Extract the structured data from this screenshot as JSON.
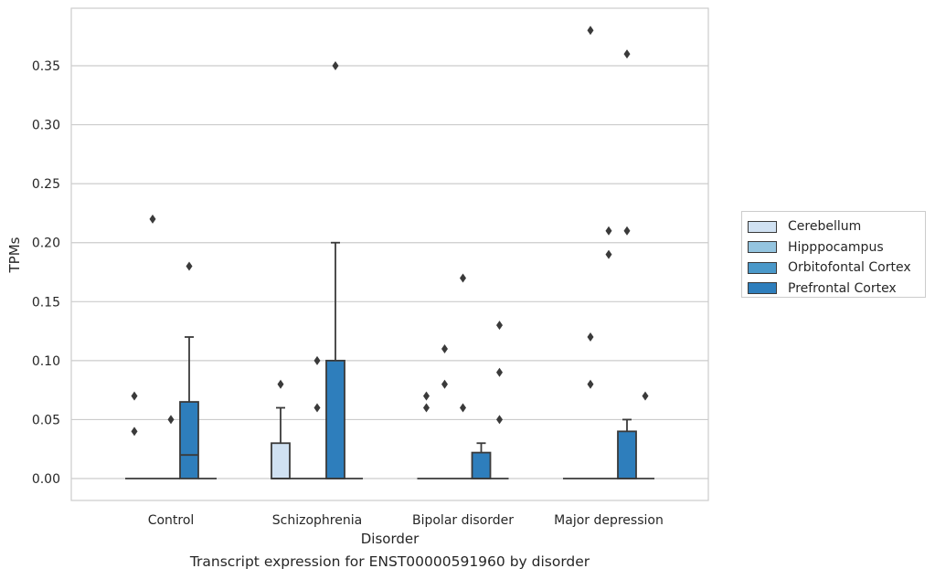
{
  "caption": "Transcript expression for ENST00000591960 by disorder",
  "chart_data": {
    "type": "box",
    "xlabel": "Disorder",
    "ylabel": "TPMs",
    "ylim": [
      -0.018,
      0.398
    ],
    "yticks": [
      "0.00",
      "0.05",
      "0.10",
      "0.15",
      "0.20",
      "0.25",
      "0.30",
      "0.35"
    ],
    "ytick_values": [
      0,
      0.05,
      0.1,
      0.15,
      0.2,
      0.25,
      0.3,
      0.35
    ],
    "grid": true,
    "legend_position": "right",
    "categories": [
      "Control",
      "Schizophrenia",
      "Bipolar disorder",
      "Major depression"
    ],
    "series": [
      {
        "name": "Cerebellum",
        "color": "#d0e1f2",
        "boxes": [
          {
            "q1": 0,
            "median": 0,
            "q3": 0,
            "whisker_low": 0,
            "whisker_high": 0,
            "outliers": [
              0.04,
              0.07
            ]
          },
          {
            "q1": 0,
            "median": 0,
            "q3": 0.03,
            "whisker_low": 0,
            "whisker_high": 0.06,
            "outliers": [
              0.08
            ]
          },
          {
            "q1": 0,
            "median": 0,
            "q3": 0,
            "whisker_low": 0,
            "whisker_high": 0,
            "outliers": [
              0.06,
              0.07
            ]
          },
          {
            "q1": 0,
            "median": 0,
            "q3": 0,
            "whisker_low": 0,
            "whisker_high": 0,
            "outliers": []
          }
        ]
      },
      {
        "name": "Hipppocampus",
        "color": "#94c4df",
        "boxes": [
          {
            "q1": 0,
            "median": 0,
            "q3": 0,
            "whisker_low": 0,
            "whisker_high": 0,
            "outliers": [
              0.22
            ]
          },
          {
            "q1": 0,
            "median": 0,
            "q3": 0,
            "whisker_low": 0,
            "whisker_high": 0,
            "outliers": []
          },
          {
            "q1": 0,
            "median": 0,
            "q3": 0,
            "whisker_low": 0,
            "whisker_high": 0,
            "outliers": [
              0.08,
              0.11
            ]
          },
          {
            "q1": 0,
            "median": 0,
            "q3": 0,
            "whisker_low": 0,
            "whisker_high": 0,
            "outliers": [
              0.08,
              0.12,
              0.38
            ]
          }
        ]
      },
      {
        "name": "Orbitofontal Cortex",
        "color": "#4a98c9",
        "boxes": [
          {
            "q1": 0,
            "median": 0,
            "q3": 0,
            "whisker_low": 0,
            "whisker_high": 0,
            "outliers": [
              0.05
            ]
          },
          {
            "q1": 0,
            "median": 0,
            "q3": 0,
            "whisker_low": 0,
            "whisker_high": 0,
            "outliers": [
              0.06,
              0.1
            ]
          },
          {
            "q1": 0,
            "median": 0,
            "q3": 0,
            "whisker_low": 0,
            "whisker_high": 0,
            "outliers": [
              0.06,
              0.17
            ]
          },
          {
            "q1": 0,
            "median": 0,
            "q3": 0,
            "whisker_low": 0,
            "whisker_high": 0,
            "outliers": [
              0.19,
              0.21
            ]
          }
        ]
      },
      {
        "name": "Prefrontal Cortex",
        "color": "#2e7ebc",
        "boxes": [
          {
            "q1": 0,
            "median": 0.02,
            "q3": 0.065,
            "whisker_low": 0,
            "whisker_high": 0.12,
            "outliers": [
              0.18
            ]
          },
          {
            "q1": 0,
            "median": 0,
            "q3": 0.1,
            "whisker_low": 0,
            "whisker_high": 0.2,
            "outliers": [
              0.35
            ]
          },
          {
            "q1": 0,
            "median": 0,
            "q3": 0.022,
            "whisker_low": 0,
            "whisker_high": 0.03,
            "outliers": []
          },
          {
            "q1": 0,
            "median": 0,
            "q3": 0.04,
            "whisker_low": 0,
            "whisker_high": 0.05,
            "outliers": [
              0.21,
              0.36
            ]
          }
        ]
      },
      {
        "name": "",
        "color": "#ffffff",
        "boxes": [
          {
            "q1": 0,
            "median": 0,
            "q3": 0,
            "whisker_low": 0,
            "whisker_high": 0,
            "outliers": []
          },
          {
            "q1": 0,
            "median": 0,
            "q3": 0,
            "whisker_low": 0,
            "whisker_high": 0,
            "outliers": []
          },
          {
            "q1": 0,
            "median": 0,
            "q3": 0,
            "whisker_low": 0,
            "whisker_high": 0,
            "outliers": [
              0.09,
              0.13,
              0.05
            ]
          },
          {
            "q1": 0,
            "median": 0,
            "q3": 0,
            "whisker_low": 0,
            "whisker_high": 0,
            "outliers": [
              0.07
            ]
          }
        ]
      }
    ]
  }
}
